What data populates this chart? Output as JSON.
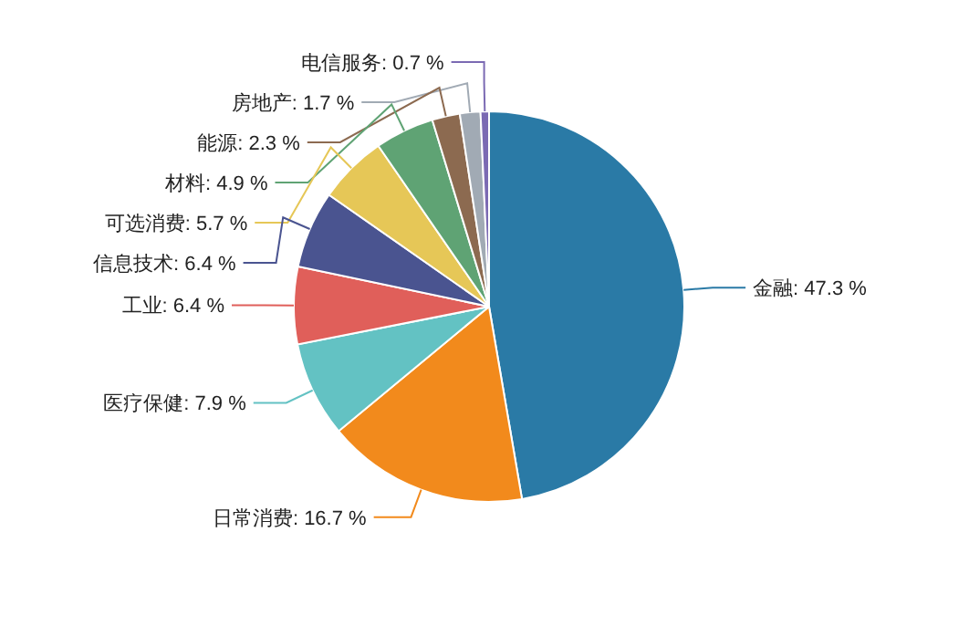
{
  "chart_data": {
    "type": "pie",
    "categories": [
      "金融",
      "日常消费",
      "医疗保健",
      "工业",
      "信息技术",
      "可选消费",
      "材料",
      "能源",
      "房地产",
      "电信服务"
    ],
    "values": [
      47.3,
      16.7,
      7.9,
      6.4,
      6.4,
      5.7,
      4.9,
      2.3,
      1.7,
      0.7
    ],
    "value_labels": [
      "47.3 %",
      "16.7 %",
      "7.9 %",
      "6.4 %",
      "6.4 %",
      "5.7 %",
      "4.9 %",
      "2.3 %",
      "1.7 %",
      "0.7 %"
    ],
    "colors": [
      "#2a7aa6",
      "#f28a1c",
      "#63c2c3",
      "#e05f5a",
      "#4a5490",
      "#e6c757",
      "#5fa374",
      "#8c6a50",
      "#a1aab4",
      "#7b6ab3"
    ]
  }
}
